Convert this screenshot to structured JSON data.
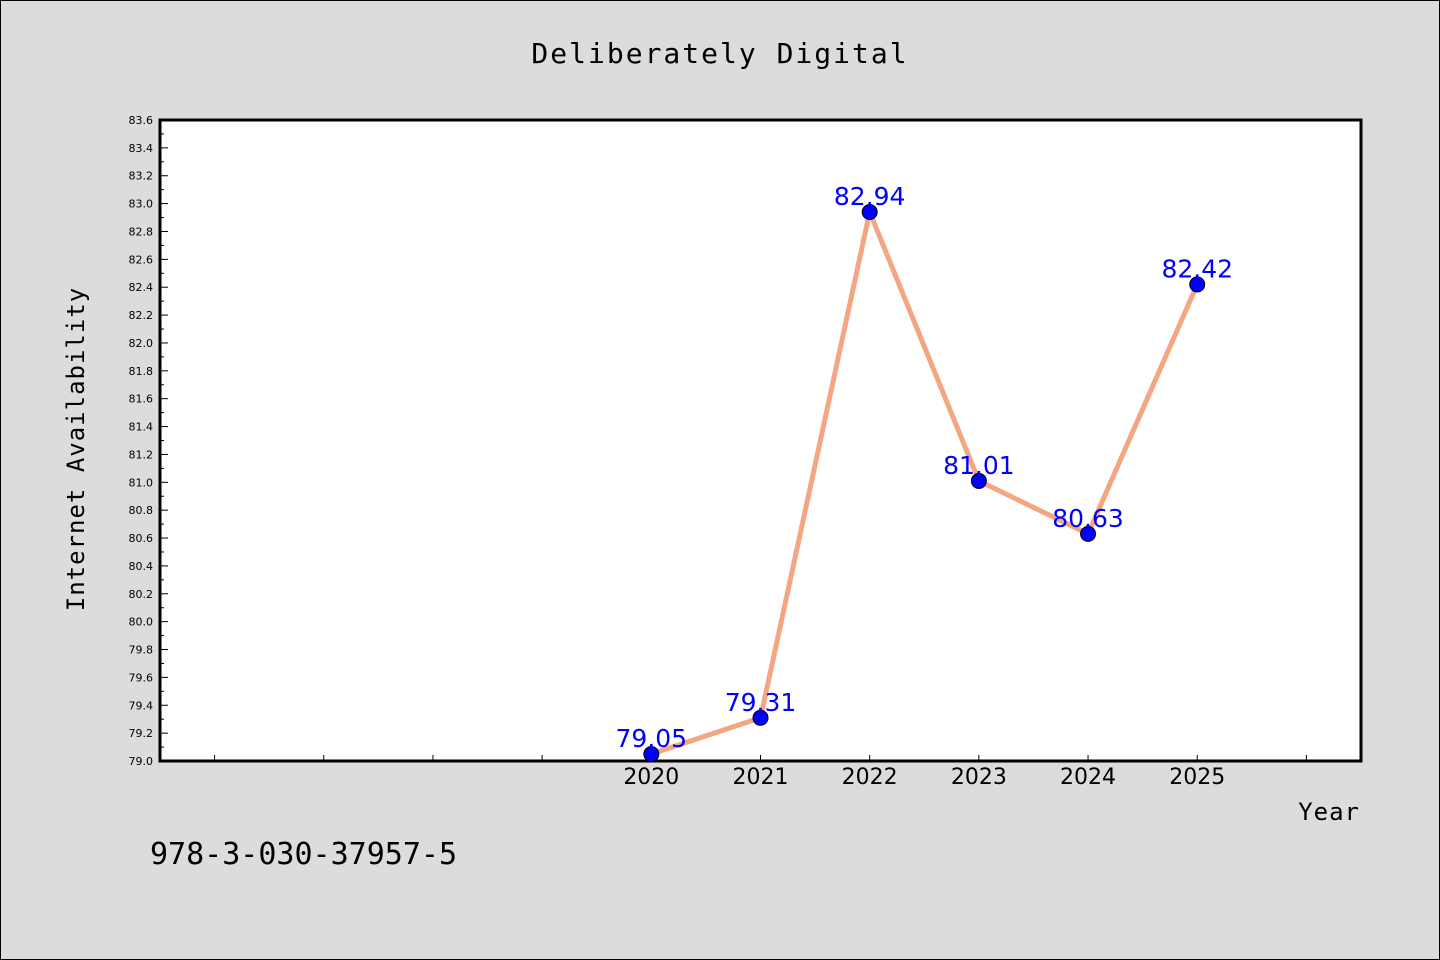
{
  "chart_data": {
    "type": "line",
    "title": "Deliberately Digital",
    "xlabel": "Year",
    "ylabel": "Internet Availability",
    "x": [
      2020,
      2021,
      2022,
      2023,
      2024,
      2025
    ],
    "series": [
      {
        "values": [
          79.05,
          79.31,
          82.94,
          81.01,
          80.63,
          82.42
        ]
      }
    ],
    "data_labels": [
      "79.05",
      "79.31",
      "82.94",
      "81.01",
      "80.63",
      "82.42"
    ],
    "xticks": [
      "2020",
      "2021",
      "2022",
      "2023",
      "2024",
      "2025"
    ],
    "xlim": [
      2015.5,
      2026.5
    ],
    "ylim": [
      79.0,
      83.6
    ],
    "yticks": [
      "79.0",
      "79.2",
      "79.4",
      "79.6",
      "79.8",
      "80.0",
      "80.2",
      "80.4",
      "80.6",
      "80.8",
      "81.0",
      "81.2",
      "81.4",
      "81.6",
      "81.8",
      "82.0",
      "82.2",
      "82.4",
      "82.6",
      "82.8",
      "83.0",
      "83.2",
      "83.4",
      "83.6"
    ],
    "grid": false,
    "colors": {
      "line": "#f4a582",
      "marker": "#0000ff",
      "label": "#0000ff",
      "background": "#dcdcdc",
      "plot_background": "#ffffff"
    }
  },
  "footer": {
    "isbn": "978-3-030-37957-5"
  }
}
